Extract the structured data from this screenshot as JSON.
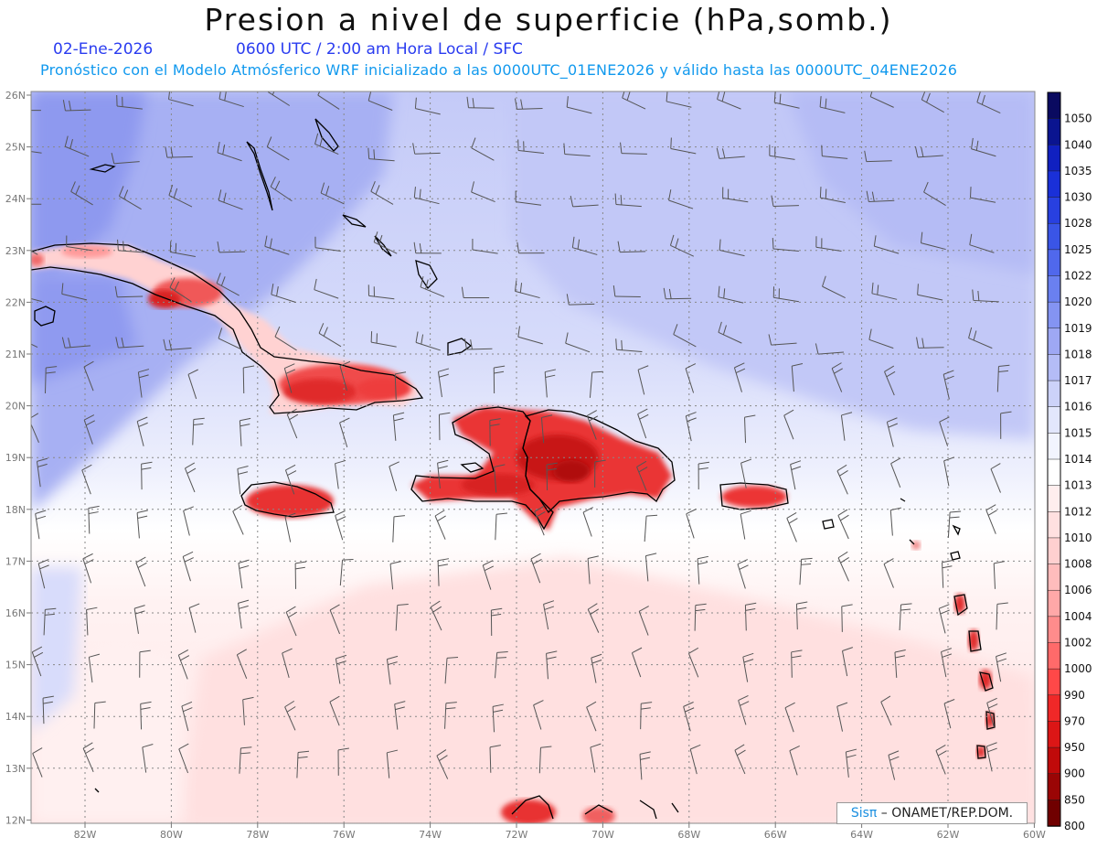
{
  "header": {
    "title": "Presion a nivel de superficie (hPa,somb.)",
    "date": "02-Ene-2026",
    "time_info": "0600 UTC / 2:00 am Hora Local / SFC",
    "model_info": "Pronóstico con el Modelo Atmósferico WRF inicializado a las 0000UTC_01ENE2026 y válido hasta las  0000UTC_04ENE2026"
  },
  "axes": {
    "lat_labels": [
      "26N",
      "25N",
      "24N",
      "23N",
      "22N",
      "21N",
      "20N",
      "19N",
      "18N",
      "17N",
      "16N",
      "15N",
      "14N",
      "13N",
      "12N"
    ],
    "lon_labels": [
      "82W",
      "80W",
      "78W",
      "76W",
      "74W",
      "72W",
      "70W",
      "68W",
      "66W",
      "64W",
      "62W",
      "60W"
    ]
  },
  "colorbar": {
    "levels": [
      "1050",
      "1040",
      "1035",
      "1030",
      "1028",
      "1025",
      "1022",
      "1020",
      "1019",
      "1018",
      "1017",
      "1016",
      "1015",
      "1014",
      "1013",
      "1012",
      "1010",
      "1008",
      "1006",
      "1004",
      "1002",
      "1000",
      "990",
      "970",
      "950",
      "900",
      "850",
      "800"
    ],
    "colors": [
      "#0a0a60",
      "#0a1490",
      "#1020c0",
      "#1a30d8",
      "#2840e0",
      "#3a55e6",
      "#5068ec",
      "#6a80f0",
      "#8494f2",
      "#9ea8f4",
      "#b4bcf6",
      "#ccd2f9",
      "#e2e6fc",
      "#f2f4fe",
      "#ffffff",
      "#ffeeee",
      "#ffe0e0",
      "#ffd0d0",
      "#ffbcbc",
      "#ffa8a8",
      "#ff8c8c",
      "#ff6a6a",
      "#ff4848",
      "#f02828",
      "#dc1616",
      "#c00a0a",
      "#9a0505",
      "#700000"
    ]
  },
  "credit": {
    "brand": "Sisπ",
    "org": " – ONAMET/REP.DOM."
  }
}
